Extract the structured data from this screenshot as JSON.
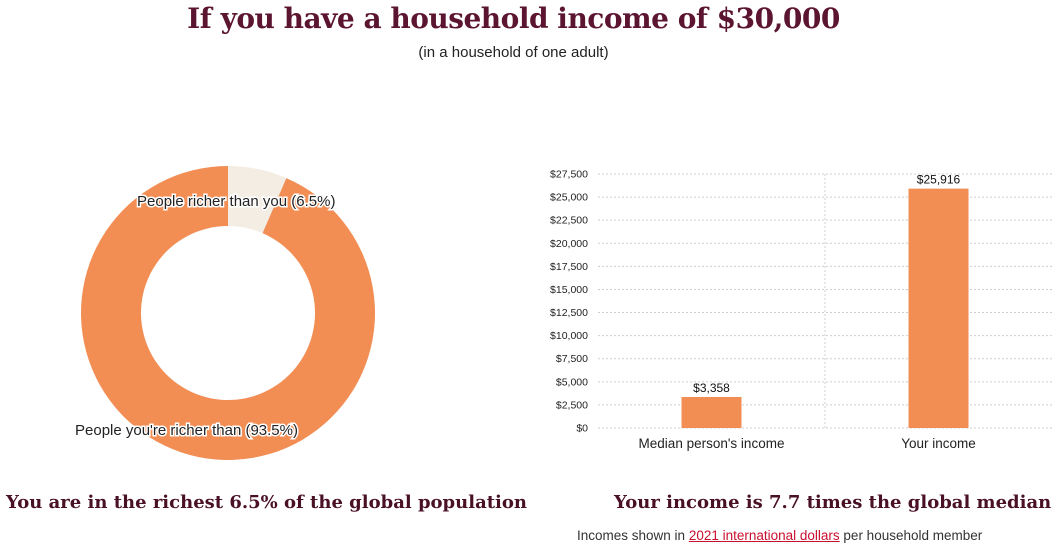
{
  "header": {
    "title": "If you have a household income of $30,000",
    "subtitle": "(in a household of one adult)"
  },
  "chart_data": [
    {
      "type": "pie",
      "slices": [
        {
          "label": "People richer than you (6.5%)",
          "value": 6.5,
          "color": "#f4ede4"
        },
        {
          "label": "People you're richer than (93.5%)",
          "value": 93.5,
          "color": "#f28e54"
        }
      ]
    },
    {
      "type": "bar",
      "categories": [
        "Median person's income",
        "Your income"
      ],
      "values": [
        3358,
        25916
      ],
      "data_labels": [
        "$3,358",
        "$25,916"
      ],
      "ylim": [
        0,
        27500
      ],
      "yticks": [
        0,
        2500,
        5000,
        7500,
        10000,
        12500,
        15000,
        17500,
        20000,
        22500,
        25000,
        27500
      ],
      "ytick_labels": [
        "$0",
        "$2,500",
        "$5,000",
        "$7,500",
        "$10,000",
        "$12,500",
        "$15,000",
        "$17,500",
        "$20,000",
        "$22,500",
        "$25,000",
        "$27,500"
      ],
      "grid": true,
      "bar_color": "#f28e54"
    }
  ],
  "captions": {
    "left": "You are in the richest 6.5% of the global population",
    "right": "Your income is 7.7 times the global median"
  },
  "footnote": {
    "prefix": "Incomes shown in ",
    "link": "2021 international dollars",
    "suffix": " per household member"
  }
}
